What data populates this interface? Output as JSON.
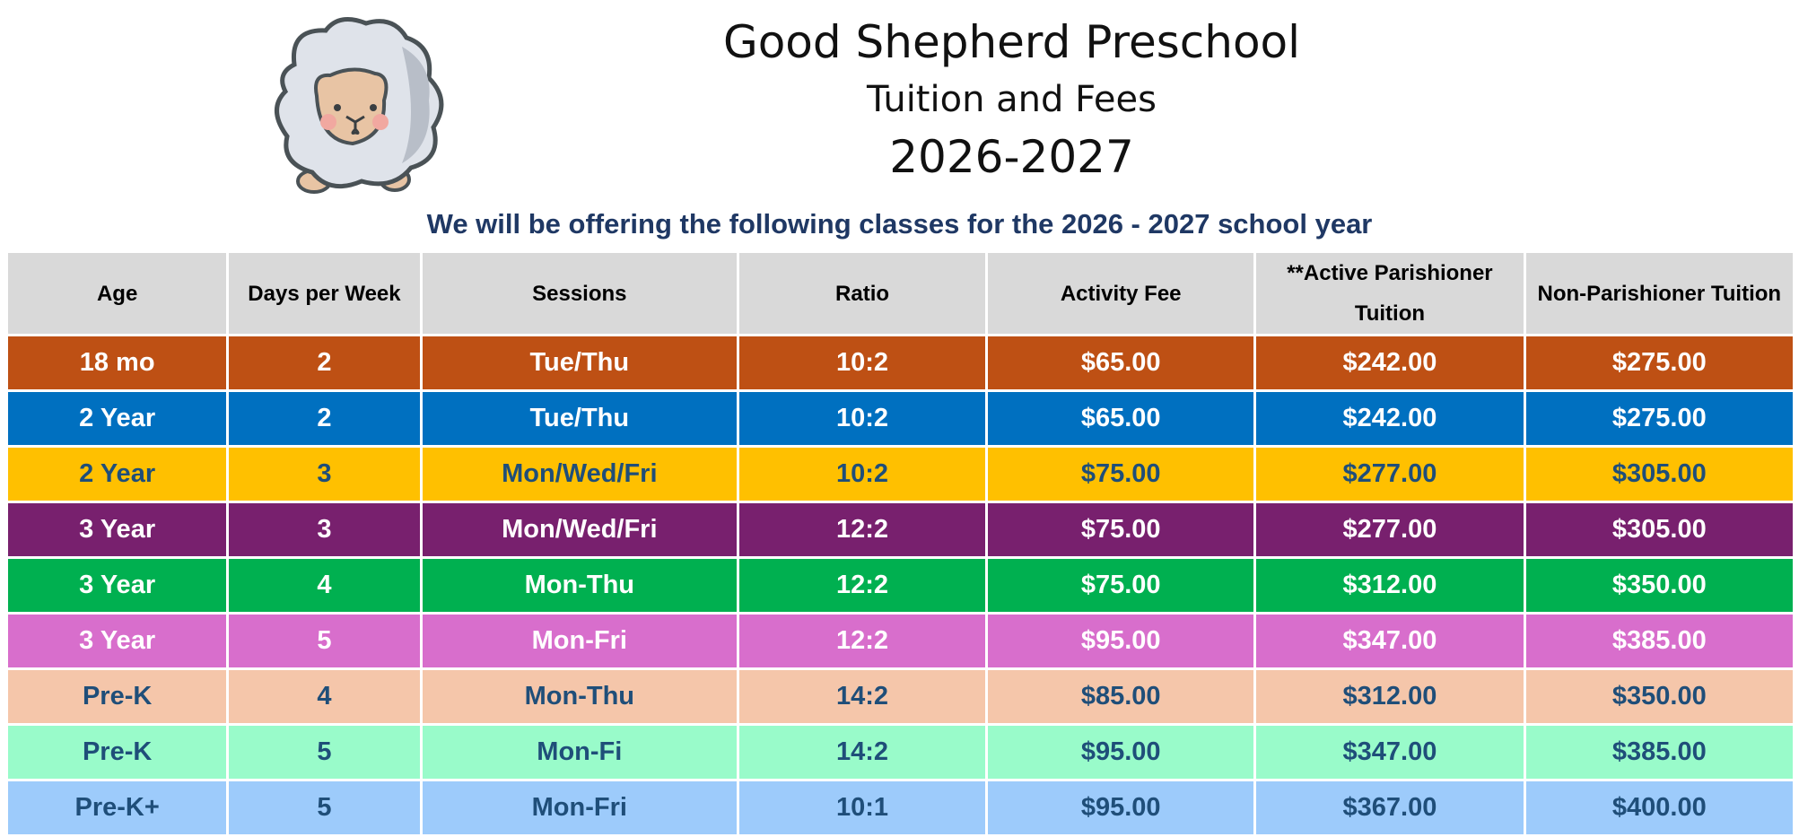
{
  "header": {
    "school_name": "Good Shepherd Preschool",
    "subtitle": "Tuition and Fees",
    "year": "2026-2027",
    "intro": "We will be offering the following classes for the 2026 - 2027 school year"
  },
  "table": {
    "columns": [
      "Age",
      "Days per Week",
      "Sessions",
      "Ratio",
      "Activity Fee",
      "**Active Parishioner Tuition",
      "Non-Parishioner Tuition"
    ],
    "rows": [
      {
        "cells": [
          "18 mo",
          "2",
          "Tue/Thu",
          "10:2",
          "$65.00",
          "$242.00",
          "$275.00"
        ],
        "color": "#BE5014",
        "text": "dark"
      },
      {
        "cells": [
          "2 Year",
          "2",
          "Tue/Thu",
          "10:2",
          "$65.00",
          "$242.00",
          "$275.00"
        ],
        "color": "#0070C0",
        "text": "dark"
      },
      {
        "cells": [
          "2 Year",
          "3",
          "Mon/Wed/Fri",
          "10:2",
          "$75.00",
          "$277.00",
          "$305.00"
        ],
        "color": "#FFC000",
        "text": "light"
      },
      {
        "cells": [
          "3 Year",
          "3",
          "Mon/Wed/Fri",
          "12:2",
          "$75.00",
          "$277.00",
          "$305.00"
        ],
        "color": "#78206E",
        "text": "dark"
      },
      {
        "cells": [
          "3 Year",
          "4",
          "Mon-Thu",
          "12:2",
          "$75.00",
          "$312.00",
          "$350.00"
        ],
        "color": "#00B050",
        "text": "dark"
      },
      {
        "cells": [
          "3 Year",
          "5",
          "Mon-Fri",
          "12:2",
          "$95.00",
          "$347.00",
          "$385.00"
        ],
        "color": "#D86ECC",
        "text": "dark"
      },
      {
        "cells": [
          "Pre-K",
          "4",
          "Mon-Thu",
          "14:2",
          "$85.00",
          "$312.00",
          "$350.00"
        ],
        "color": "#F5C6AA",
        "text": "light"
      },
      {
        "cells": [
          "Pre-K",
          "5",
          "Mon-Fi",
          "14:2",
          "$95.00",
          "$347.00",
          "$385.00"
        ],
        "color": "#99FBCA",
        "text": "light"
      },
      {
        "cells": [
          "Pre-K+",
          "5",
          "Mon-Fri",
          "10:1",
          "$95.00",
          "$367.00",
          "$400.00"
        ],
        "color": "#9DCBFB",
        "text": "light"
      }
    ]
  },
  "icons": {
    "logo": "sheep-icon"
  }
}
